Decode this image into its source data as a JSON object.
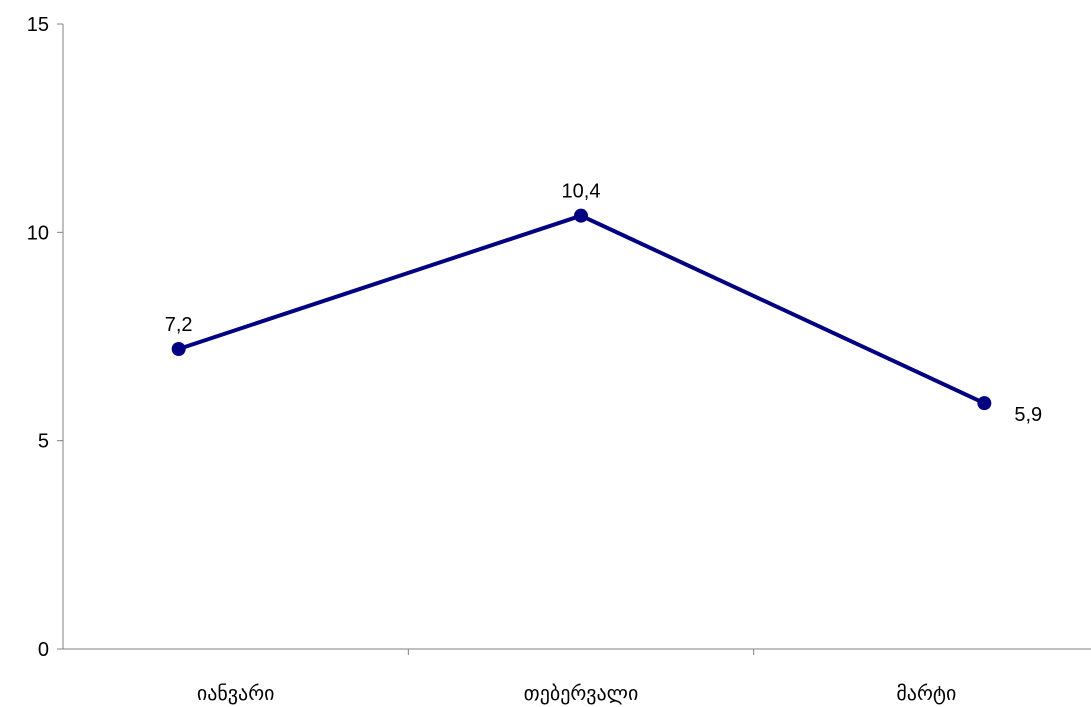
{
  "chart_data": {
    "type": "line",
    "title": "",
    "xlabel": "",
    "ylabel": "",
    "categories": [
      "იანვარი",
      "თებერვალი",
      "მარტი"
    ],
    "series": [
      {
        "values": [
          7.2,
          10.4,
          5.9
        ],
        "data_labels": [
          "7,2",
          "10,4",
          "5,9"
        ],
        "color": "#000080"
      }
    ],
    "ylim": [
      0,
      15
    ],
    "yticks": [
      0,
      5,
      10,
      15
    ],
    "ytick_labels": [
      "0",
      "5",
      "10",
      "15"
    ],
    "grid": false,
    "legend": "none",
    "axis_color": "#808080"
  }
}
